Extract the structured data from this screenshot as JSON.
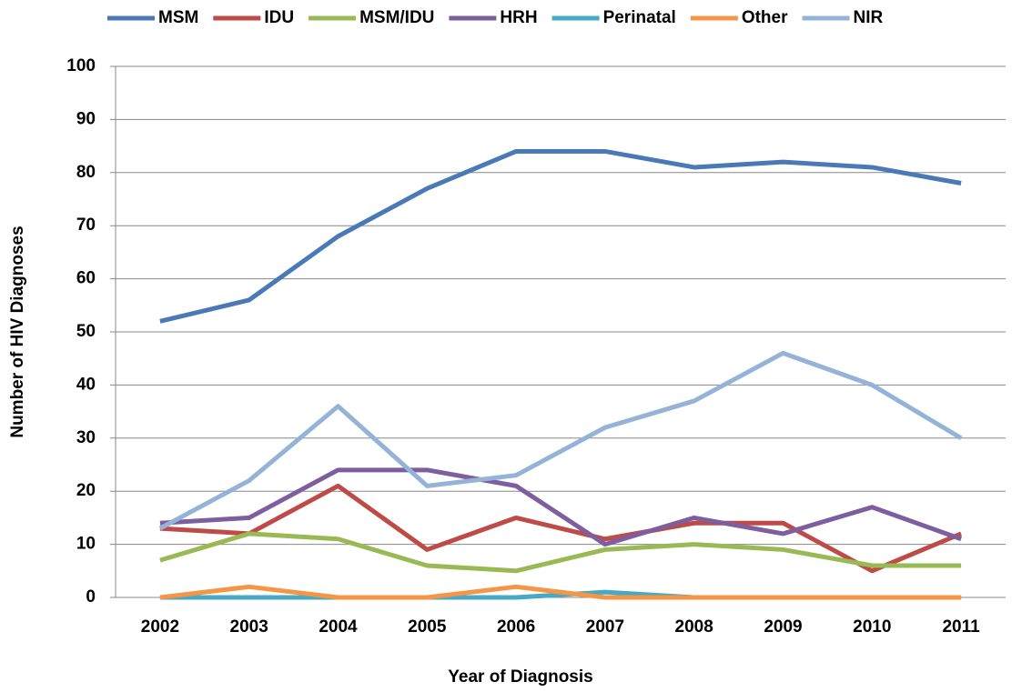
{
  "chart_data": {
    "type": "line",
    "x_label": "Year of Diagnosis",
    "y_label": "Number of HIV Diagnoses",
    "categories": [
      "2002",
      "2003",
      "2004",
      "2005",
      "2006",
      "2007",
      "2008",
      "2009",
      "2010",
      "2011"
    ],
    "series": [
      {
        "name": "MSM",
        "color": "#4a7ab5",
        "values": [
          52,
          56,
          68,
          77,
          84,
          84,
          81,
          82,
          81,
          78
        ]
      },
      {
        "name": "IDU",
        "color": "#be4b48",
        "values": [
          13,
          12,
          21,
          9,
          15,
          11,
          14,
          14,
          5,
          12
        ]
      },
      {
        "name": "MSM/IDU",
        "color": "#98b954",
        "values": [
          7,
          12,
          11,
          6,
          5,
          9,
          10,
          9,
          6,
          6
        ]
      },
      {
        "name": "HRH",
        "color": "#7d5fa0",
        "values": [
          14,
          15,
          24,
          24,
          21,
          10,
          15,
          12,
          17,
          11
        ]
      },
      {
        "name": "Perinatal",
        "color": "#46aac5",
        "values": [
          0,
          0,
          0,
          0,
          0,
          1,
          0,
          0,
          0,
          0
        ]
      },
      {
        "name": "Other",
        "color": "#f59646",
        "values": [
          0,
          2,
          0,
          0,
          2,
          0,
          0,
          0,
          0,
          0
        ]
      },
      {
        "name": "NIR",
        "color": "#95b3d7",
        "values": [
          13,
          22,
          36,
          21,
          23,
          32,
          37,
          46,
          40,
          30
        ]
      }
    ],
    "ylim": [
      0,
      100
    ],
    "yticks": [
      0,
      10,
      20,
      30,
      40,
      50,
      60,
      70,
      80,
      90,
      100
    ],
    "grid": true,
    "legend": "top"
  }
}
